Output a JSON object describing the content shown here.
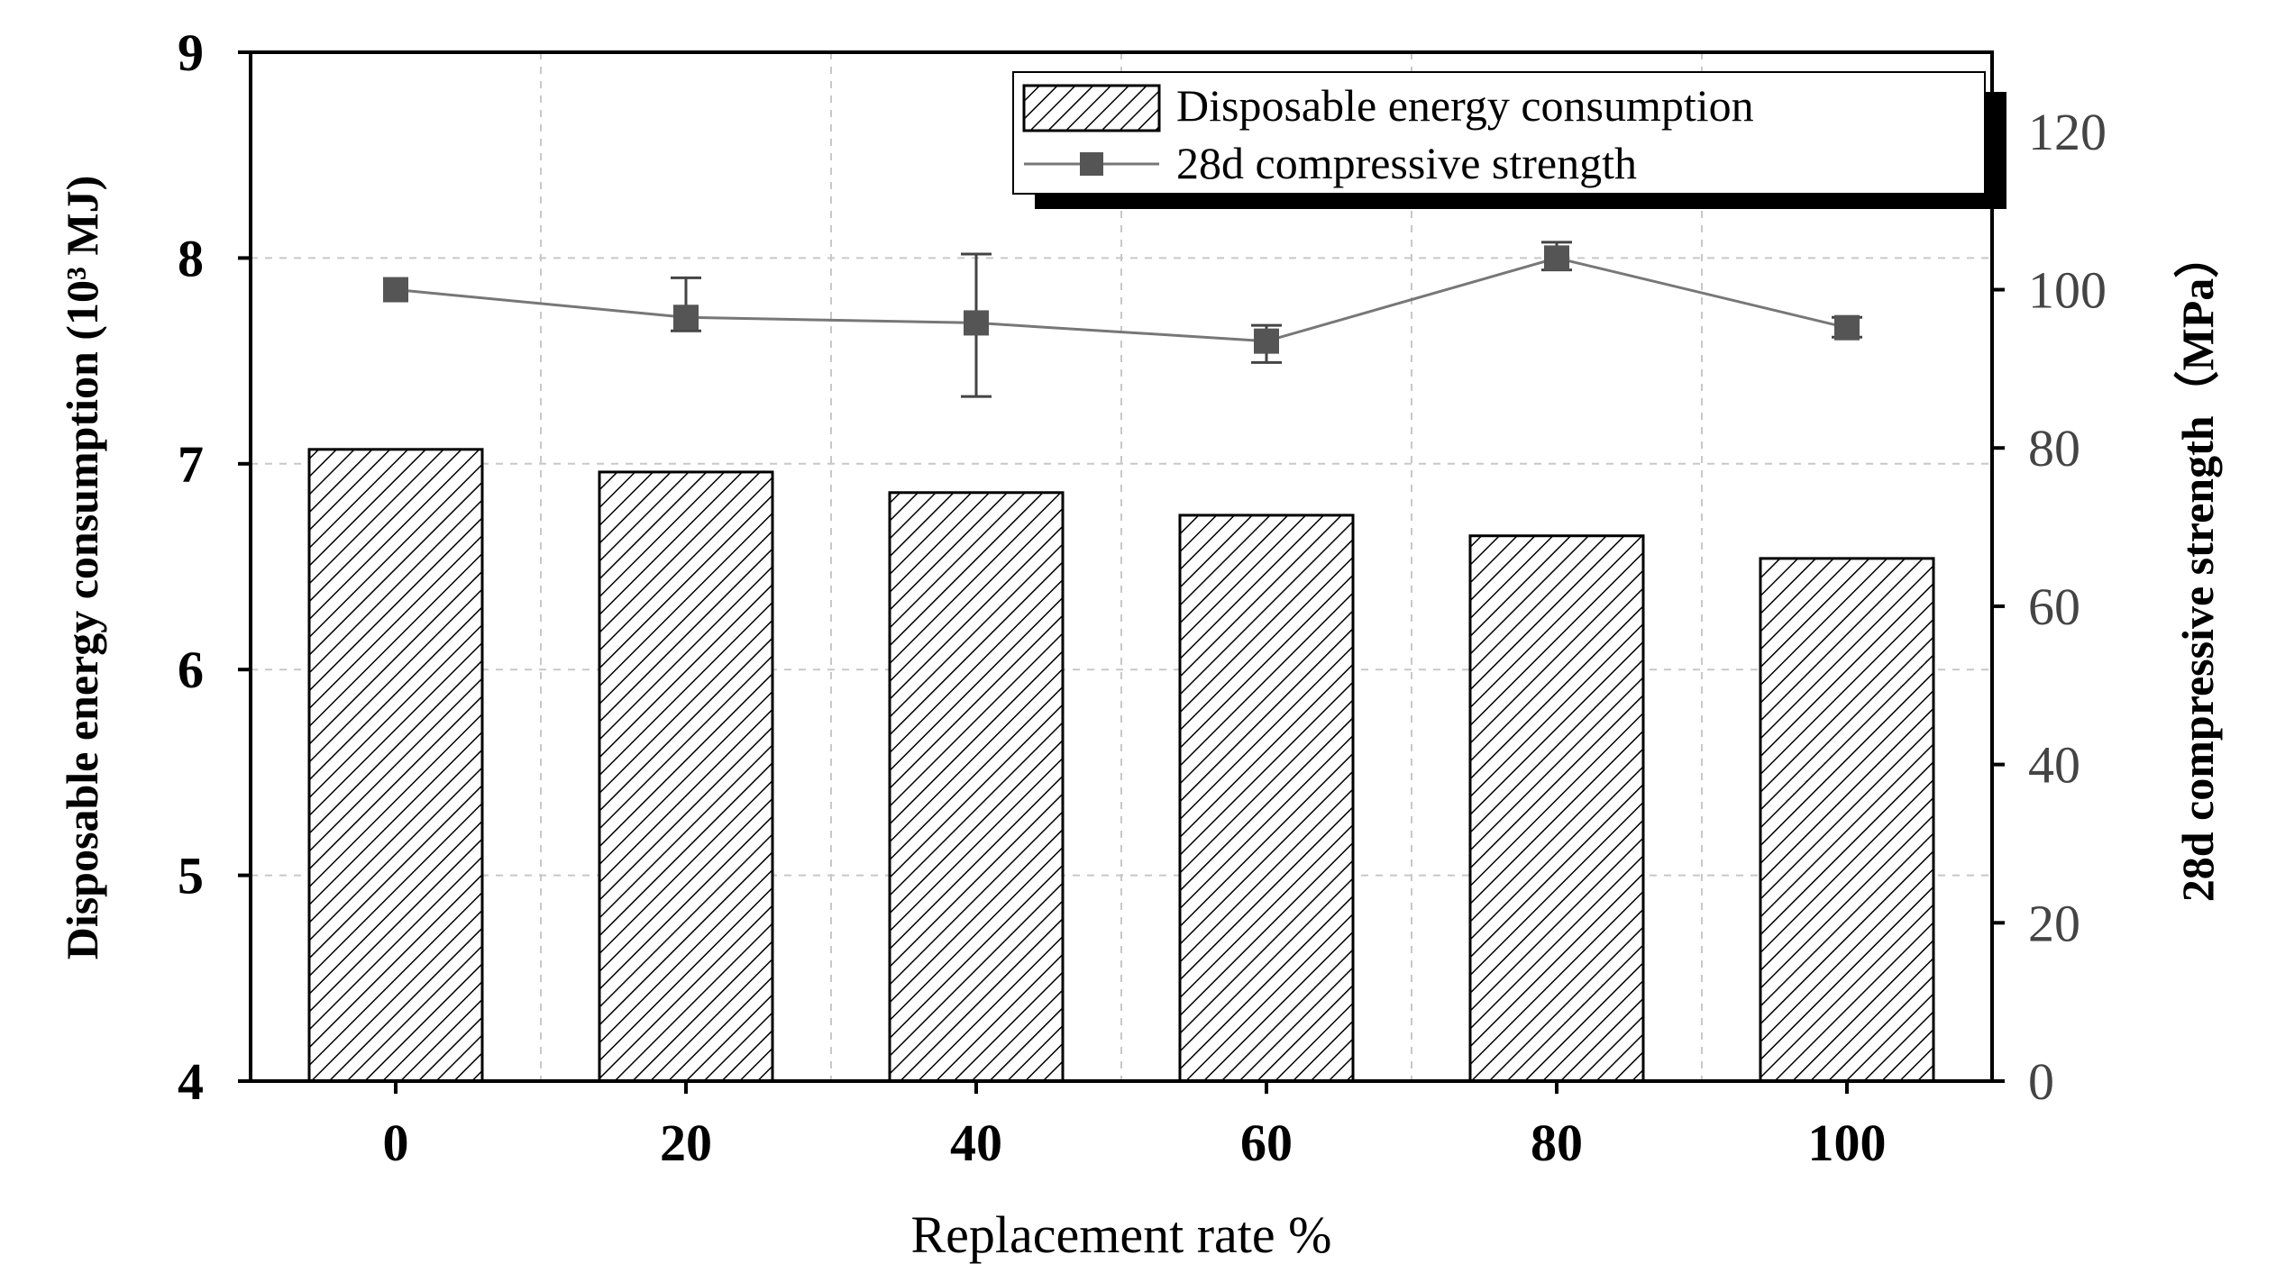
{
  "chart_data": {
    "type": "bar",
    "title": "",
    "categories": [
      "0",
      "20",
      "40",
      "60",
      "80",
      "100"
    ],
    "xlabel": "Replacement rate %",
    "ylabel_left": "Disposable energy consumption (10³ MJ)",
    "ylabel_right": "28d compressive strength（MPa）",
    "y_left": {
      "min": 4,
      "max": 9,
      "ticks": [
        "4",
        "5",
        "6",
        "7",
        "8",
        "9"
      ]
    },
    "y_right": {
      "min": 0,
      "max": 130,
      "ticks": [
        "0",
        "20",
        "40",
        "60",
        "80",
        "100",
        "120"
      ]
    },
    "grid": true,
    "legend_position": "top-right",
    "series": [
      {
        "name": "Disposable energy consumption",
        "type": "bar",
        "axis": "left",
        "pattern": "diagonal-hatch",
        "values": [
          7.07,
          6.96,
          6.86,
          6.75,
          6.65,
          6.54
        ]
      },
      {
        "name": "28d compressive strength",
        "type": "line",
        "axis": "right",
        "marker": "square",
        "color": "#555555",
        "values": [
          100.0,
          96.5,
          95.8,
          93.5,
          104.0,
          95.2
        ],
        "error_low": [
          100.0,
          94.8,
          86.5,
          90.8,
          102.5,
          94.0
        ],
        "error_high": [
          100.0,
          101.5,
          104.5,
          95.5,
          106.0,
          96.5
        ]
      }
    ]
  }
}
